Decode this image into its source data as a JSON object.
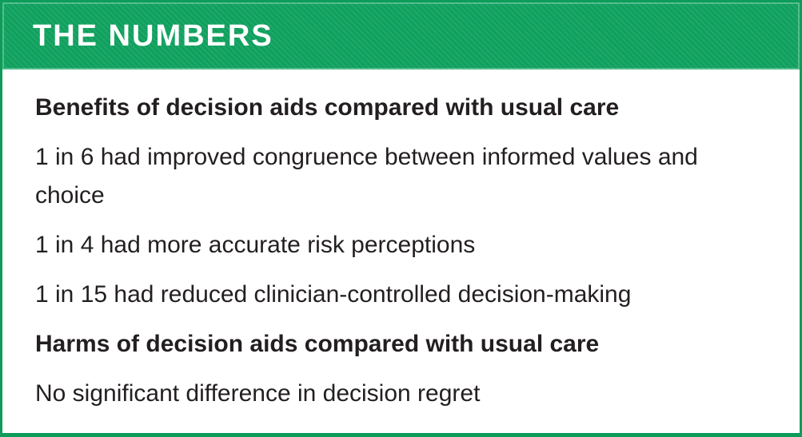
{
  "panel": {
    "title": "THE NUMBERS",
    "sections": [
      {
        "heading": "Benefits of decision aids compared with usual care",
        "items": [
          "1 in 6 had improved congruence between informed values and choice",
          "1 in 4 had more accurate risk perceptions",
          "1 in 15 had reduced clinician-controlled decision-making"
        ]
      },
      {
        "heading": "Harms of decision aids compared with usual care",
        "items": [
          "No significant difference in decision regret"
        ]
      }
    ]
  },
  "colors": {
    "green": "#0fa05e",
    "border_green": "#0d9c5a",
    "text": "#231f20",
    "header_text": "#ffffff"
  }
}
